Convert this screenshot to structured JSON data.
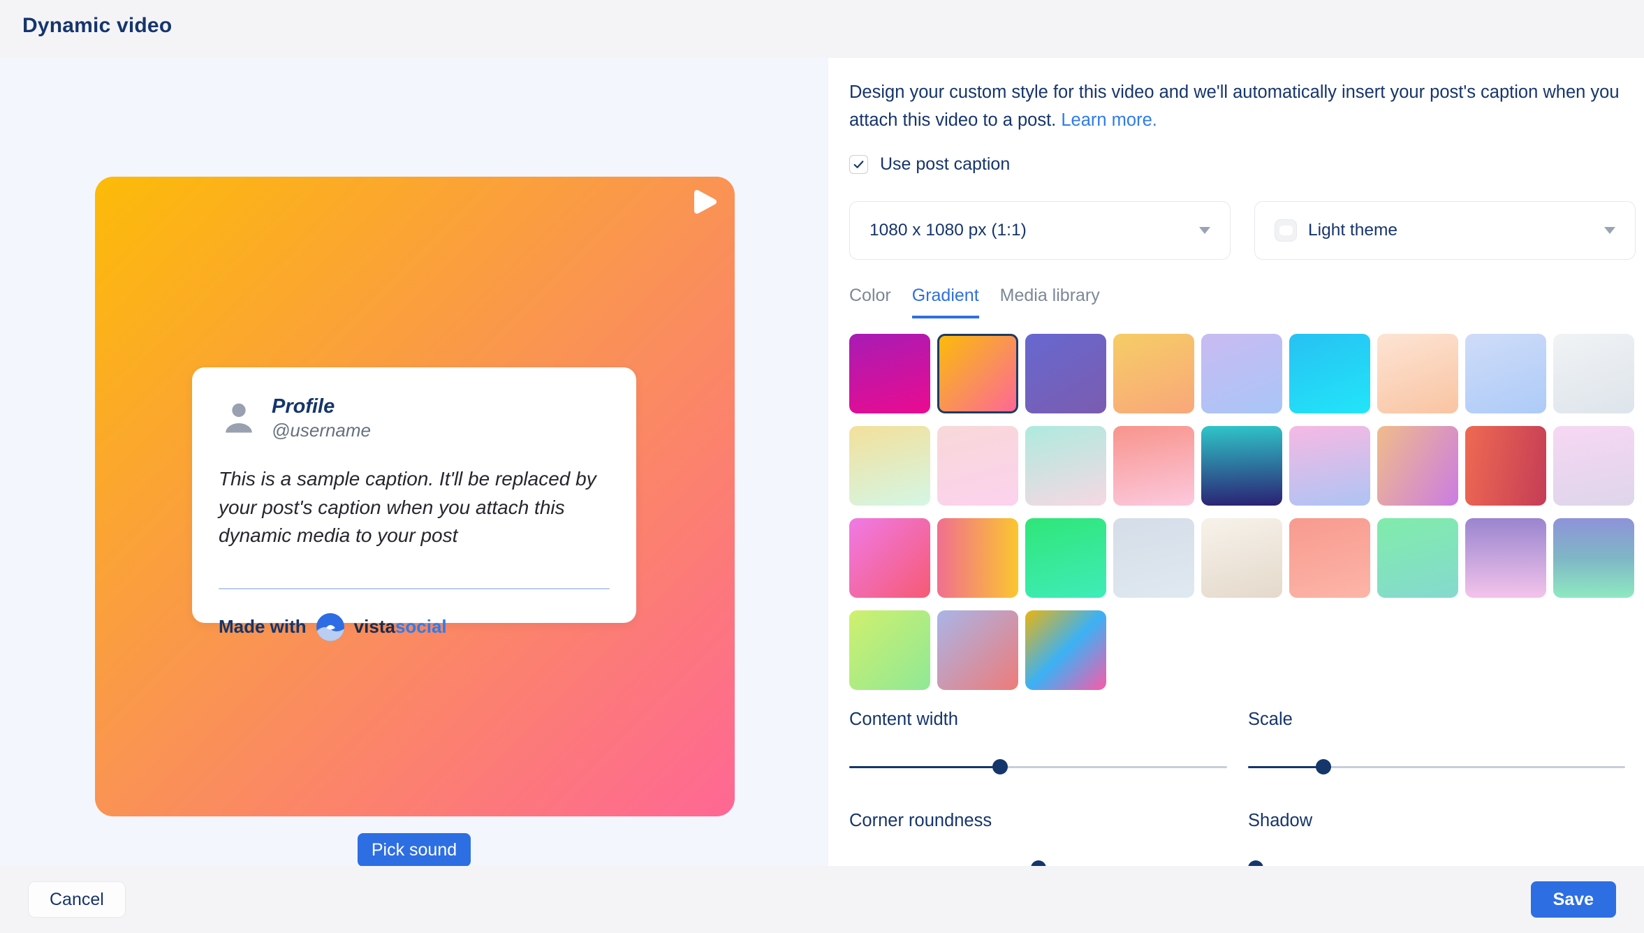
{
  "colors": {
    "accent_blue": "#2d6ee3",
    "link_blue": "#2f7bea",
    "navy_text": "#16356c",
    "gray_text": "#7c8798",
    "left_panel_bg": "#f3f6fc",
    "bar_bg": "#f4f4f7",
    "slider_fill": "#14366b",
    "slider_rest": "#c6cedb",
    "selected_swatch_border": "#1d3a63"
  },
  "header": {
    "title": "Dynamic video"
  },
  "preview": {
    "gradient": {
      "angle": 135,
      "colors": [
        "#fcbb08",
        "#fa9354",
        "#fe6795"
      ]
    },
    "card": {
      "profile_name": "Profile",
      "username": "@username",
      "caption": "This is a sample caption. It'll be replaced by your post's caption when you attach this dynamic media to your post",
      "made_with": "Made with",
      "brand_vista": "vista",
      "brand_social": "social"
    },
    "pick_sound_label": "Pick sound"
  },
  "settings": {
    "description": "Design your custom style for this video and we'll automatically insert your post's caption when you attach this video to a post.",
    "learn_more_label": "Learn more.",
    "use_post_caption": {
      "label": "Use post caption",
      "checked": true
    },
    "size_select": {
      "value": "1080 x 1080 px (1:1)"
    },
    "theme_select": {
      "value": "Light theme"
    },
    "tabs": [
      {
        "label": "Color",
        "active": false
      },
      {
        "label": "Gradient",
        "active": true
      },
      {
        "label": "Media library",
        "active": false
      }
    ],
    "swatches": [
      {
        "angle": 165,
        "colors": [
          "#a81cb4",
          "#ea0b90"
        ],
        "selected": false
      },
      {
        "angle": 135,
        "colors": [
          "#fcbb08",
          "#fa9354",
          "#fe6795"
        ],
        "selected": true
      },
      {
        "angle": 150,
        "colors": [
          "#6768d0",
          "#7b5caf"
        ],
        "selected": false
      },
      {
        "angle": 160,
        "colors": [
          "#f6cd66",
          "#f9a77a"
        ],
        "selected": false
      },
      {
        "angle": 160,
        "colors": [
          "#c9bbf2",
          "#a9c5f7"
        ],
        "selected": false
      },
      {
        "angle": 160,
        "colors": [
          "#27c1f2",
          "#22e5f9"
        ],
        "selected": false
      },
      {
        "angle": 160,
        "colors": [
          "#fde4d4",
          "#f9c4a2"
        ],
        "selected": false
      },
      {
        "angle": 160,
        "colors": [
          "#cfdcf8",
          "#adcbf8"
        ],
        "selected": false
      },
      {
        "angle": 160,
        "colors": [
          "#f1f3f5",
          "#dde4eb"
        ],
        "selected": false
      },
      {
        "angle": 165,
        "colors": [
          "#f3e09b",
          "#d4f6e5"
        ],
        "selected": false
      },
      {
        "angle": 165,
        "colors": [
          "#f8d8d8",
          "#fcd2ee"
        ],
        "selected": false
      },
      {
        "angle": 165,
        "colors": [
          "#aeeade",
          "#f6d8e3"
        ],
        "selected": false
      },
      {
        "angle": 170,
        "colors": [
          "#f8948c",
          "#fcc9de"
        ],
        "selected": false
      },
      {
        "angle": 178,
        "colors": [
          "#2fc6c9",
          "#2a2173"
        ],
        "selected": false
      },
      {
        "angle": 170,
        "colors": [
          "#f6b9e3",
          "#aec4f4"
        ],
        "selected": false
      },
      {
        "angle": 120,
        "colors": [
          "#f0bc8a",
          "#cb7ce2"
        ],
        "selected": false
      },
      {
        "angle": 100,
        "colors": [
          "#ef6a52",
          "#c43d56"
        ],
        "selected": false
      },
      {
        "angle": 170,
        "colors": [
          "#f7d7f3",
          "#ded6ea"
        ],
        "selected": false
      },
      {
        "angle": 135,
        "colors": [
          "#ef7ae6",
          "#f65a73"
        ],
        "selected": false
      },
      {
        "angle": 90,
        "colors": [
          "#f06f8f",
          "#fbc62f"
        ],
        "selected": false
      },
      {
        "angle": 165,
        "colors": [
          "#2fe678",
          "#3fecb9"
        ],
        "selected": false
      },
      {
        "angle": 165,
        "colors": [
          "#d5dde8",
          "#dfe9f0"
        ],
        "selected": false
      },
      {
        "angle": 165,
        "colors": [
          "#f7f2ea",
          "#e4d9cb"
        ],
        "selected": false
      },
      {
        "angle": 165,
        "colors": [
          "#f89a8e",
          "#fcb5a8"
        ],
        "selected": false
      },
      {
        "angle": 165,
        "colors": [
          "#80ecaa",
          "#85d9cf"
        ],
        "selected": false
      },
      {
        "angle": 180,
        "colors": [
          "#9a85cf",
          "#f3c3eb"
        ],
        "selected": false
      },
      {
        "angle": 180,
        "colors": [
          "#8e93d9",
          "#7fb6c6",
          "#8fe9c1"
        ],
        "selected": false
      },
      {
        "angle": 135,
        "colors": [
          "#cff06e",
          "#8fe896"
        ],
        "selected": false
      },
      {
        "angle": 135,
        "colors": [
          "#a9b5e8",
          "#ee7b79"
        ],
        "selected": false
      },
      {
        "angle": 135,
        "colors": [
          "#e9b511",
          "#3bb1f5",
          "#fc59a8"
        ],
        "selected": false
      }
    ],
    "sliders": [
      {
        "label": "Content width",
        "value_pct": 40
      },
      {
        "label": "Scale",
        "value_pct": 20
      },
      {
        "label": "Corner roundness",
        "value_pct": 50
      },
      {
        "label": "Shadow",
        "value_pct": 0
      }
    ]
  },
  "footer": {
    "cancel_label": "Cancel",
    "save_label": "Save"
  }
}
